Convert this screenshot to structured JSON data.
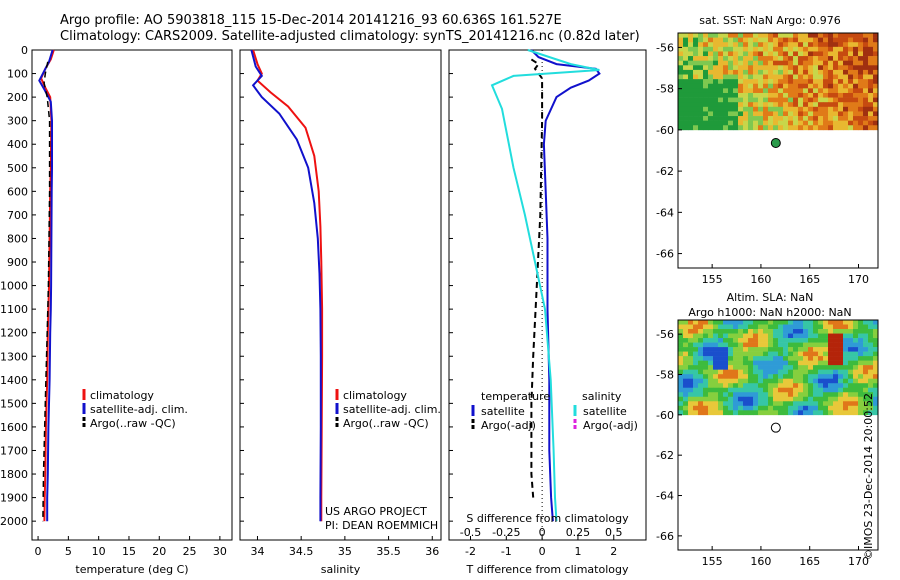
{
  "header": {
    "line1": "Argo profile: AO 5903818_115 15-Dec-2014 20141216_93 60.636S 161.527E",
    "line2": "Climatology: CARS2009. Satellite-adjusted climatology: synTS_20141216.nc (0.82d later)"
  },
  "stamp": "©IMOS 23-Dec-2014 20:00:52",
  "colors": {
    "climatology": "#ee1111",
    "satellite": "#1111cc",
    "argo": "#000000",
    "satellite_salinity": "#22dddd",
    "argo_salinity": "#dd22dd",
    "marker_fill": "#2a9a4a"
  },
  "chart_data": [
    {
      "type": "line",
      "id": "temperature",
      "xlabel": "temperature (deg C)",
      "ylabel": "",
      "xlim": [
        -1,
        32
      ],
      "ylim": [
        2080,
        0
      ],
      "xticks": [
        0,
        5,
        10,
        15,
        20,
        25,
        30
      ],
      "yticks": [
        0,
        100,
        200,
        300,
        400,
        500,
        600,
        700,
        800,
        900,
        1000,
        1100,
        1200,
        1300,
        1400,
        1500,
        1600,
        1700,
        1800,
        1900,
        2000
      ],
      "legend": [
        "climatology",
        "satellite-adj. clim.",
        "Argo(..raw -QC)"
      ],
      "legend_position": "lower-center",
      "series": [
        {
          "name": "climatology",
          "x": [
            2.6,
            2.1,
            1.2,
            0.5,
            1.2,
            2.0,
            2.2,
            2.15,
            2.1,
            2.0,
            1.9,
            1.8,
            1.7,
            1.6,
            1.5,
            1.4,
            1.3,
            1.2,
            1.1,
            1.05
          ],
          "y": [
            0,
            40,
            80,
            120,
            160,
            200,
            300,
            400,
            500,
            600,
            800,
            1000,
            1100,
            1200,
            1400,
            1500,
            1600,
            1800,
            1900,
            2000
          ]
        },
        {
          "name": "satellite-adj. clim.",
          "x": [
            2.4,
            1.8,
            0.8,
            0.2,
            1.1,
            2.1,
            2.3,
            2.3,
            2.3,
            2.25,
            2.2,
            2.15,
            2.1,
            2.0,
            1.9,
            1.8,
            1.7,
            1.6,
            1.5,
            1.5
          ],
          "y": [
            0,
            50,
            100,
            130,
            170,
            220,
            300,
            400,
            500,
            600,
            800,
            1000,
            1100,
            1200,
            1400,
            1500,
            1600,
            1800,
            1900,
            2000
          ]
        },
        {
          "name": "Argo(..raw -QC)",
          "x": [
            1.6,
            1.2,
            1.0,
            1.5,
            1.9,
            1.9,
            1.8,
            1.7,
            1.5,
            1.3,
            1.2,
            1.0,
            0.9,
            0.8
          ],
          "y": [
            50,
            100,
            140,
            200,
            300,
            600,
            800,
            1000,
            1200,
            1400,
            1500,
            1700,
            1800,
            2000
          ]
        }
      ]
    },
    {
      "type": "line",
      "id": "salinity",
      "xlabel": "salinity",
      "xlim": [
        33.8,
        36.1
      ],
      "ylim": [
        2080,
        0
      ],
      "xticks": [
        34,
        34.5,
        35,
        35.5,
        36
      ],
      "xticklabels": [
        "34",
        "34.5",
        "35",
        "35.5",
        "36"
      ],
      "legend": [
        "climatology",
        "satellite-adj. clim.",
        "Argo(..raw -QC)"
      ],
      "legend_position": "lower-right",
      "annotation": [
        "US ARGO PROJECT",
        "PI: DEAN ROEMMICH"
      ],
      "series": [
        {
          "name": "climatology",
          "x": [
            33.95,
            34.0,
            34.05,
            34.0,
            34.15,
            34.35,
            34.55,
            34.65,
            34.7,
            34.72,
            34.73,
            34.735,
            34.74,
            34.74,
            34.735,
            34.73,
            34.73
          ],
          "y": [
            0,
            60,
            100,
            130,
            180,
            240,
            330,
            450,
            600,
            750,
            900,
            1000,
            1100,
            1300,
            1600,
            1900,
            2000
          ]
        },
        {
          "name": "satellite-adj. clim.",
          "x": [
            33.93,
            33.98,
            34.05,
            33.95,
            34.05,
            34.25,
            34.45,
            34.58,
            34.65,
            34.69,
            34.71,
            34.72,
            34.725,
            34.725,
            34.72,
            34.72
          ],
          "y": [
            0,
            70,
            110,
            150,
            200,
            270,
            380,
            500,
            650,
            800,
            950,
            1100,
            1300,
            1600,
            1900,
            2000
          ]
        }
      ]
    },
    {
      "type": "line",
      "id": "differences",
      "xlabel": "T difference from climatology",
      "xlabel2": "S difference from climatology",
      "xlim": [
        -2.6,
        2.9
      ],
      "ylim": [
        2080,
        0
      ],
      "xticks": [
        -2,
        -1,
        0,
        1,
        2
      ],
      "xticks2": [
        -0.5,
        -0.25,
        0,
        0.25,
        0.5
      ],
      "xticks2_labels": [
        "-0.5",
        "-0.25",
        "0",
        "0.25",
        "0.5"
      ],
      "legend_headers": [
        "temperature",
        "salinity"
      ],
      "legend": [
        "satellite",
        "Argo(-adj)",
        "satellite",
        "Argo(-adj)"
      ],
      "legend_position": "lower-center",
      "series": [
        {
          "name": "satellite",
          "group": "temperature",
          "x": [
            -0.3,
            -0.1,
            0.4,
            1.5,
            1.6,
            1.3,
            0.8,
            0.4,
            0.1,
            0.05,
            0.1,
            0.15,
            0.15,
            0.2,
            0.2,
            0.25,
            0.3
          ],
          "y": [
            0,
            30,
            60,
            80,
            100,
            130,
            160,
            200,
            300,
            400,
            600,
            800,
            1100,
            1400,
            1700,
            1900,
            2000
          ]
        },
        {
          "name": "Argo(-adj)",
          "group": "temperature",
          "x": [
            -0.3,
            -0.1,
            -0.2,
            0.0,
            0.0,
            -0.05,
            -0.15,
            -0.25,
            -0.3,
            -0.3,
            -0.25
          ],
          "y": [
            40,
            60,
            80,
            120,
            300,
            700,
            1000,
            1300,
            1500,
            1800,
            1900
          ]
        },
        {
          "name": "satellite",
          "group": "salinity",
          "x": [
            -0.1,
            0.2,
            0.4,
            -0.2,
            -0.35,
            -0.28,
            -0.2,
            -0.12,
            -0.05,
            0.02,
            0.06,
            0.08,
            0.09,
            0.1
          ],
          "y": [
            0,
            60,
            85,
            110,
            150,
            250,
            500,
            700,
            900,
            1100,
            1400,
            1700,
            1900,
            2000
          ]
        }
      ]
    },
    {
      "type": "heatmap",
      "id": "sst-map",
      "title": "sat. SST: NaN Argo: 0.976",
      "xlim": [
        151.5,
        172
      ],
      "ylim": [
        -66.7,
        -55.3
      ],
      "xticks": [
        155,
        160,
        165,
        170
      ],
      "yticks": [
        -56,
        -58,
        -60,
        -62,
        -64,
        -66
      ],
      "data_ylim": [
        -60,
        -55.3
      ],
      "argo_point": {
        "lon": 161.527,
        "lat": -60.636
      },
      "palette": [
        "#1f9a3a",
        "#7ec850",
        "#c8d64a",
        "#e8b830",
        "#e07a18",
        "#c64a10",
        "#a03010"
      ]
    },
    {
      "type": "heatmap",
      "id": "sla-map",
      "title": "Altim. SLA: NaN",
      "subtitle": "Argo h1000: NaN h2000: NaN",
      "xlim": [
        151.5,
        172
      ],
      "ylim": [
        -66.7,
        -55.3
      ],
      "xticks": [
        155,
        160,
        165,
        170
      ],
      "yticks": [
        -56,
        -58,
        -60,
        -62,
        -64,
        -66
      ],
      "data_ylim": [
        -60,
        -55.3
      ],
      "argo_point": {
        "lon": 161.527,
        "lat": -60.636
      },
      "palette": [
        "#1a4fcc",
        "#2f9bd6",
        "#36c6a6",
        "#3dbb3d",
        "#86cf3e",
        "#e8c83a",
        "#e0761a",
        "#b4240a"
      ]
    }
  ]
}
